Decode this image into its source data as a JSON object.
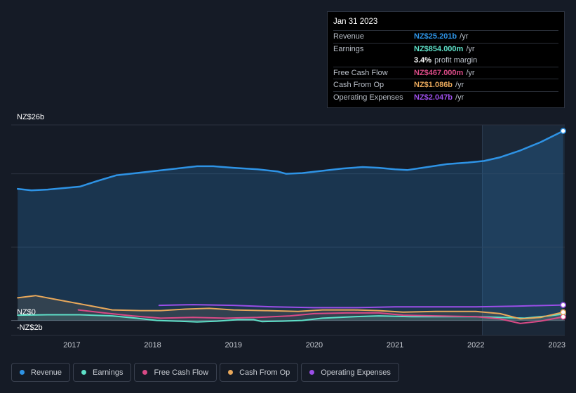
{
  "tooltip": {
    "date": "Jan 31 2023",
    "rows": {
      "revenue": {
        "label": "Revenue",
        "value": "NZ$25.201b",
        "unit": "/yr",
        "color": "#2e93e5"
      },
      "earnings": {
        "label": "Earnings",
        "value": "NZ$854.000m",
        "unit": "/yr",
        "color": "#5ee0c8"
      },
      "margin": {
        "value": "3.4%",
        "text": "profit margin"
      },
      "fcf": {
        "label": "Free Cash Flow",
        "value": "NZ$467.000m",
        "unit": "/yr",
        "color": "#d94a86"
      },
      "cfo": {
        "label": "Cash From Op",
        "value": "NZ$1.086b",
        "unit": "/yr",
        "color": "#e8a85b"
      },
      "opex": {
        "label": "Operating Expenses",
        "value": "NZ$2.047b",
        "unit": "/yr",
        "color": "#9b4ee8"
      }
    }
  },
  "legend": [
    {
      "label": "Revenue",
      "color": "#2e93e5"
    },
    {
      "label": "Earnings",
      "color": "#5ee0c8"
    },
    {
      "label": "Free Cash Flow",
      "color": "#d94a86"
    },
    {
      "label": "Cash From Op",
      "color": "#e8a85b"
    },
    {
      "label": "Operating Expenses",
      "color": "#9b4ee8"
    }
  ],
  "chart_data": {
    "type": "line",
    "y_tick_labels": [
      "NZ$26b",
      "NZ$0",
      "-NZ$2b"
    ],
    "y_tick_values": [
      26,
      0,
      -2
    ],
    "ylim": [
      -2,
      26
    ],
    "x_tick_labels": [
      "2017",
      "2018",
      "2019",
      "2020",
      "2021",
      "2022",
      "2023"
    ],
    "x_tick_values": [
      2017,
      2018,
      2019,
      2020,
      2021,
      2022,
      2023
    ],
    "xlim": [
      2016.25,
      2023.1
    ],
    "highlight_from": 2022.08,
    "unit": "NZ$ billions",
    "series": [
      {
        "name": "Revenue",
        "key": "revenue",
        "color": "#2e93e5",
        "fill": true,
        "points": [
          [
            2016.33,
            17.5
          ],
          [
            2016.5,
            17.3
          ],
          [
            2016.7,
            17.4
          ],
          [
            2016.9,
            17.6
          ],
          [
            2017.1,
            17.8
          ],
          [
            2017.3,
            18.5
          ],
          [
            2017.55,
            19.3
          ],
          [
            2017.8,
            19.6
          ],
          [
            2018.05,
            19.9
          ],
          [
            2018.3,
            20.2
          ],
          [
            2018.55,
            20.5
          ],
          [
            2018.75,
            20.5
          ],
          [
            2019.0,
            20.3
          ],
          [
            2019.3,
            20.1
          ],
          [
            2019.55,
            19.8
          ],
          [
            2019.65,
            19.5
          ],
          [
            2019.85,
            19.6
          ],
          [
            2020.1,
            19.9
          ],
          [
            2020.35,
            20.2
          ],
          [
            2020.6,
            20.4
          ],
          [
            2020.8,
            20.3
          ],
          [
            2021.0,
            20.1
          ],
          [
            2021.15,
            20.0
          ],
          [
            2021.4,
            20.4
          ],
          [
            2021.65,
            20.8
          ],
          [
            2021.9,
            21.0
          ],
          [
            2022.1,
            21.2
          ],
          [
            2022.3,
            21.7
          ],
          [
            2022.55,
            22.6
          ],
          [
            2022.8,
            23.7
          ],
          [
            2023.08,
            25.2
          ]
        ]
      },
      {
        "name": "Earnings",
        "key": "earnings",
        "color": "#5ee0c8",
        "fill": true,
        "points": [
          [
            2016.33,
            0.7
          ],
          [
            2016.7,
            0.75
          ],
          [
            2017.1,
            0.75
          ],
          [
            2017.5,
            0.6
          ],
          [
            2017.8,
            0.3
          ],
          [
            2018.05,
            0.0
          ],
          [
            2018.3,
            -0.1
          ],
          [
            2018.55,
            -0.2
          ],
          [
            2018.8,
            -0.1
          ],
          [
            2019.05,
            0.1
          ],
          [
            2019.25,
            0.1
          ],
          [
            2019.35,
            -0.15
          ],
          [
            2019.6,
            -0.1
          ],
          [
            2019.85,
            0.0
          ],
          [
            2020.1,
            0.3
          ],
          [
            2020.5,
            0.5
          ],
          [
            2020.8,
            0.6
          ],
          [
            2021.2,
            0.5
          ],
          [
            2021.6,
            0.5
          ],
          [
            2022.0,
            0.5
          ],
          [
            2022.3,
            0.4
          ],
          [
            2022.6,
            0.3
          ],
          [
            2022.9,
            0.6
          ],
          [
            2023.08,
            0.85
          ]
        ]
      },
      {
        "name": "Free Cash Flow",
        "key": "fcf",
        "color": "#d94a86",
        "fill": false,
        "points": [
          [
            2017.08,
            1.4
          ],
          [
            2017.4,
            1.0
          ],
          [
            2017.75,
            0.6
          ],
          [
            2018.1,
            0.3
          ],
          [
            2018.5,
            0.4
          ],
          [
            2018.9,
            0.3
          ],
          [
            2019.3,
            0.4
          ],
          [
            2019.7,
            0.6
          ],
          [
            2020.0,
            0.9
          ],
          [
            2020.4,
            1.0
          ],
          [
            2020.8,
            1.0
          ],
          [
            2021.1,
            0.7
          ],
          [
            2021.5,
            0.6
          ],
          [
            2022.0,
            0.5
          ],
          [
            2022.3,
            0.2
          ],
          [
            2022.55,
            -0.4
          ],
          [
            2022.8,
            -0.1
          ],
          [
            2023.08,
            0.47
          ]
        ]
      },
      {
        "name": "Cash From Op",
        "key": "cfo",
        "color": "#e8a85b",
        "fill": true,
        "points": [
          [
            2016.33,
            3.0
          ],
          [
            2016.55,
            3.3
          ],
          [
            2016.8,
            2.8
          ],
          [
            2017.1,
            2.2
          ],
          [
            2017.5,
            1.4
          ],
          [
            2017.85,
            1.3
          ],
          [
            2018.1,
            1.3
          ],
          [
            2018.4,
            1.5
          ],
          [
            2018.7,
            1.6
          ],
          [
            2019.0,
            1.4
          ],
          [
            2019.4,
            1.3
          ],
          [
            2019.8,
            1.2
          ],
          [
            2020.1,
            1.4
          ],
          [
            2020.5,
            1.4
          ],
          [
            2020.8,
            1.3
          ],
          [
            2021.1,
            1.1
          ],
          [
            2021.5,
            1.2
          ],
          [
            2022.0,
            1.2
          ],
          [
            2022.3,
            0.9
          ],
          [
            2022.55,
            0.2
          ],
          [
            2022.8,
            0.4
          ],
          [
            2023.08,
            1.09
          ]
        ]
      },
      {
        "name": "Operating Expenses",
        "key": "opex",
        "color": "#9b4ee8",
        "fill": false,
        "points": [
          [
            2018.08,
            2.0
          ],
          [
            2018.5,
            2.1
          ],
          [
            2019.0,
            2.0
          ],
          [
            2019.5,
            1.8
          ],
          [
            2020.0,
            1.7
          ],
          [
            2020.5,
            1.7
          ],
          [
            2021.0,
            1.8
          ],
          [
            2021.5,
            1.8
          ],
          [
            2022.0,
            1.8
          ],
          [
            2022.5,
            1.9
          ],
          [
            2023.08,
            2.05
          ]
        ]
      }
    ]
  }
}
